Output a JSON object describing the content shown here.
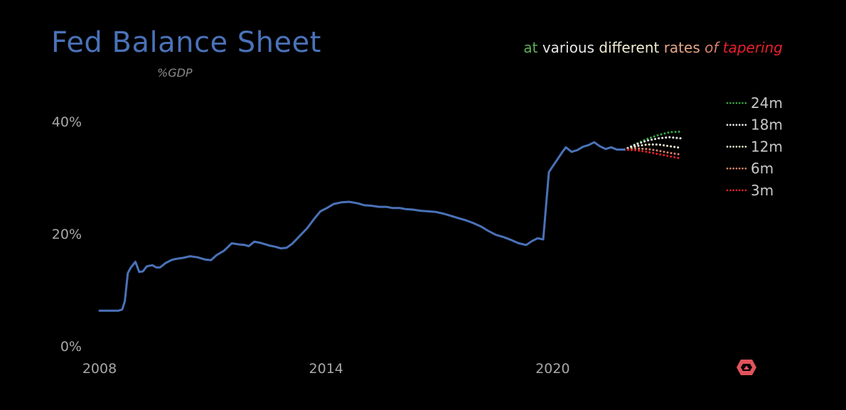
{
  "header": {
    "title": "Fed Balance Sheet",
    "subtitle": "%GDP",
    "tagline": {
      "at": "at",
      "various": "various",
      "different": "different",
      "rates": "rates",
      "of": "of",
      "tapering": "tapering"
    }
  },
  "colors": {
    "history": "#4a72b8",
    "scenario_24m": "#3aa64a",
    "scenario_18m": "#e8e8e8",
    "scenario_12m": "#f2ecd2",
    "scenario_6m": "#d9826b",
    "scenario_3m": "#e8202a",
    "logo": "#e0535a"
  },
  "logo_icon": "hexagon-logo-icon",
  "chart_data": {
    "type": "line",
    "title": "Fed Balance Sheet",
    "ylabel": "%GDP",
    "xlabel": "",
    "xlim": [
      2008,
      2023.4
    ],
    "ylim": [
      0,
      40
    ],
    "x_ticks": [
      2008,
      2014,
      2020
    ],
    "x_tick_labels": [
      "2008",
      "2014",
      "2020"
    ],
    "y_ticks": [
      0,
      20,
      40
    ],
    "y_tick_labels": [
      "0%",
      "20%",
      "40%"
    ],
    "grid": false,
    "legend_position": "top-right",
    "series": [
      {
        "key": "history",
        "style": "solid",
        "x": [
          2008.0,
          2008.25,
          2008.5,
          2008.6,
          2008.67,
          2008.75,
          2008.83,
          2008.95,
          2009.05,
          2009.15,
          2009.25,
          2009.4,
          2009.5,
          2009.6,
          2009.75,
          2009.9,
          2010.0,
          2010.2,
          2010.4,
          2010.6,
          2010.8,
          2010.95,
          2011.1,
          2011.3,
          2011.5,
          2011.7,
          2011.85,
          2011.95,
          2012.1,
          2012.25,
          2012.5,
          2012.65,
          2012.8,
          2012.95,
          2013.1,
          2013.3,
          2013.5,
          2013.7,
          2013.85,
          2014.0,
          2014.2,
          2014.4,
          2014.6,
          2014.7,
          2014.85,
          2015.0,
          2015.2,
          2015.4,
          2015.6,
          2015.75,
          2015.95,
          2016.1,
          2016.3,
          2016.5,
          2016.7,
          2016.9,
          2017.1,
          2017.3,
          2017.5,
          2017.7,
          2017.9,
          2018.1,
          2018.3,
          2018.5,
          2018.7,
          2018.9,
          2019.1,
          2019.3,
          2019.45,
          2019.6,
          2019.75,
          2019.9,
          2020.1,
          2020.2,
          2020.25,
          2020.35,
          2020.5,
          2020.65,
          2020.8,
          2020.95,
          2021.1,
          2021.25,
          2021.4,
          2021.55,
          2021.7,
          2021.9
        ],
        "values": [
          6.3,
          6.3,
          6.3,
          6.5,
          8.0,
          13.0,
          14.0,
          15.0,
          13.2,
          13.3,
          14.2,
          14.4,
          14.0,
          14.0,
          14.8,
          15.3,
          15.5,
          15.7,
          16.0,
          15.8,
          15.4,
          15.3,
          16.2,
          17.0,
          18.3,
          18.1,
          18.0,
          17.8,
          18.6,
          18.4,
          17.9,
          17.7,
          17.4,
          17.5,
          18.2,
          19.6,
          21.0,
          22.8,
          24.0,
          24.5,
          25.3,
          25.6,
          25.7,
          25.6,
          25.4,
          25.1,
          25.0,
          24.8,
          24.8,
          24.6,
          24.6,
          24.4,
          24.3,
          24.1,
          24.0,
          23.9,
          23.6,
          23.2,
          22.8,
          22.4,
          21.9,
          21.3,
          20.5,
          19.8,
          19.4,
          18.9,
          18.3,
          18.0,
          18.7,
          19.2,
          19.0,
          31.0,
          33.0,
          34.0,
          34.5,
          35.4,
          34.6,
          34.9,
          35.5,
          35.8,
          36.3,
          35.6,
          35.1,
          35.4,
          35.0,
          35.0
        ]
      },
      {
        "key": "scenario_24m",
        "name": "24m",
        "style": "dotted",
        "x": [
          2021.9,
          2022.2,
          2022.5,
          2022.8,
          2023.1,
          2023.4
        ],
        "values": [
          35.0,
          36.0,
          36.9,
          37.6,
          38.1,
          38.2
        ]
      },
      {
        "key": "scenario_18m",
        "name": "18m",
        "style": "dotted",
        "x": [
          2021.9,
          2022.2,
          2022.5,
          2022.8,
          2023.1,
          2023.4
        ],
        "values": [
          35.0,
          35.9,
          36.6,
          37.0,
          37.2,
          37.0
        ]
      },
      {
        "key": "scenario_12m",
        "name": "12m",
        "style": "dotted",
        "x": [
          2021.9,
          2022.2,
          2022.5,
          2022.8,
          2023.1,
          2023.4
        ],
        "values": [
          35.0,
          35.6,
          35.9,
          35.9,
          35.6,
          35.3
        ]
      },
      {
        "key": "scenario_6m",
        "name": "6m",
        "style": "dotted",
        "x": [
          2021.9,
          2022.2,
          2022.5,
          2022.8,
          2023.1,
          2023.4
        ],
        "values": [
          35.0,
          35.2,
          35.1,
          34.8,
          34.4,
          34.1
        ]
      },
      {
        "key": "scenario_3m",
        "name": "3m",
        "style": "dotted",
        "x": [
          2021.9,
          2022.2,
          2022.5,
          2022.8,
          2023.1,
          2023.4
        ],
        "values": [
          35.0,
          34.9,
          34.6,
          34.2,
          33.8,
          33.4
        ]
      }
    ]
  }
}
